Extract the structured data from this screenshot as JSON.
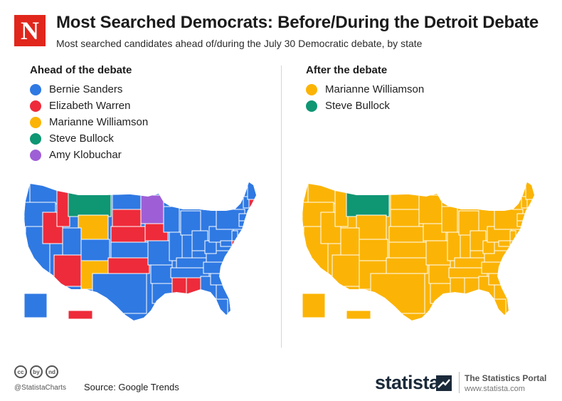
{
  "header": {
    "logo_letter": "N",
    "title": "Most Searched Democrats: Before/During the Detroit Debate",
    "subtitle": "Most searched candidates ahead of/during the July 30 Democratic debate, by state"
  },
  "colors": {
    "bernie": "#2f79e3",
    "warren": "#ee2b3a",
    "williamson": "#fbb405",
    "bullock": "#0f9673",
    "klobuchar": "#9e5fd6",
    "brand_red": "#e1261c"
  },
  "before": {
    "title": "Ahead of the debate",
    "legend": [
      {
        "label": "Bernie Sanders",
        "color": "#2f79e3"
      },
      {
        "label": "Elizabeth Warren",
        "color": "#ee2b3a"
      },
      {
        "label": "Marianne Williamson",
        "color": "#fbb405"
      },
      {
        "label": "Steve Bullock",
        "color": "#0f9673"
      },
      {
        "label": "Amy Klobuchar",
        "color": "#9e5fd6"
      }
    ],
    "map": {
      "default_candidate": "Bernie Sanders",
      "Elizabeth Warren": [
        "ID",
        "NV",
        "AZ",
        "SD",
        "NE",
        "IA",
        "OK",
        "MS",
        "AL",
        "NH",
        "DE",
        "HI"
      ],
      "Marianne Williamson": [
        "WY",
        "NM"
      ],
      "Steve Bullock": [
        "MT"
      ],
      "Amy Klobuchar": [
        "MN"
      ]
    }
  },
  "after": {
    "title": "After the debate",
    "legend": [
      {
        "label": "Marianne Williamson",
        "color": "#fbb405"
      },
      {
        "label": "Steve Bullock",
        "color": "#0f9673"
      }
    ],
    "map": {
      "default_candidate": "Marianne Williamson",
      "Steve Bullock": [
        "MT"
      ]
    }
  },
  "footer": {
    "cc_icons": [
      "cc",
      "by",
      "nd"
    ],
    "handle": "@StatistaCharts",
    "source": "Source: Google Trends",
    "brand": "statista",
    "portal_title": "The Statistics Portal",
    "portal_url": "www.statista.com"
  }
}
